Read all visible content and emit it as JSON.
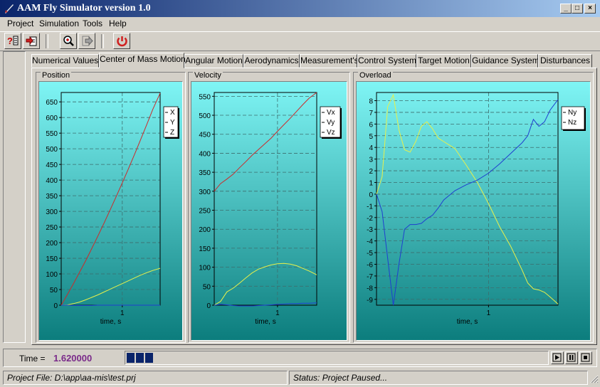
{
  "window": {
    "title": "AAM Fly Simulator version 1.0",
    "minimize": "_",
    "maximize": "□",
    "close": "×"
  },
  "menu": [
    {
      "label": "Project"
    },
    {
      "label": "Simulation"
    },
    {
      "label": "Tools"
    },
    {
      "label": "Help"
    }
  ],
  "toolbar": {
    "buttons": [
      {
        "icon": "help-list-icon"
      },
      {
        "icon": "open-project-icon"
      },
      {
        "icon": "zoom-icon"
      },
      {
        "icon": "export-icon"
      },
      {
        "icon": "stop-sim-icon"
      }
    ]
  },
  "tabs": [
    {
      "label": "Numerical Values"
    },
    {
      "label": "Center of Mass Motion",
      "active": true
    },
    {
      "label": "Angular Motion"
    },
    {
      "label": "Aerodynamics"
    },
    {
      "label": "Measurement's"
    },
    {
      "label": "Control System"
    },
    {
      "label": "Target Motion"
    },
    {
      "label": "Guidance System"
    },
    {
      "label": "Disturbances"
    }
  ],
  "chart_data": [
    {
      "type": "line",
      "title": "Position",
      "xlabel": "time, s",
      "ylabel": "",
      "xlim": [
        0,
        1.62
      ],
      "ylim": [
        0,
        680
      ],
      "xticks": [
        1
      ],
      "yticks": [
        0,
        50,
        100,
        150,
        200,
        250,
        300,
        350,
        400,
        450,
        500,
        550,
        600,
        650
      ],
      "grid": true,
      "legend_position": "top-right",
      "x": [
        0,
        0.1,
        0.2,
        0.3,
        0.4,
        0.5,
        0.6,
        0.7,
        0.8,
        0.9,
        1.0,
        1.1,
        1.2,
        1.3,
        1.4,
        1.5,
        1.62
      ],
      "series": [
        {
          "name": "X",
          "color": "#cc2a2a",
          "values": [
            0,
            34,
            69,
            105,
            142,
            181,
            221,
            262,
            304,
            347,
            391,
            436,
            482,
            529,
            577,
            626,
            678
          ]
        },
        {
          "name": "Y",
          "color": "#e8f04a",
          "values": [
            0,
            1,
            5,
            10,
            17,
            25,
            33,
            42,
            51,
            60,
            69,
            78,
            87,
            96,
            104,
            111,
            118
          ]
        },
        {
          "name": "Z",
          "color": "#1f3fd0",
          "values": [
            0,
            0,
            -1,
            -1,
            -1,
            -1,
            0,
            0,
            0,
            0,
            0,
            0,
            0,
            0,
            0,
            0,
            0
          ]
        }
      ]
    },
    {
      "type": "line",
      "title": "Velocity",
      "xlabel": "time, s",
      "ylabel": "",
      "xlim": [
        0,
        1.62
      ],
      "ylim": [
        0,
        560
      ],
      "xticks": [
        1
      ],
      "yticks": [
        0,
        50,
        100,
        150,
        200,
        250,
        300,
        350,
        400,
        450,
        500,
        550
      ],
      "grid": true,
      "legend_position": "top-right",
      "x": [
        0,
        0.1,
        0.2,
        0.3,
        0.4,
        0.5,
        0.6,
        0.7,
        0.8,
        0.9,
        1.0,
        1.1,
        1.2,
        1.3,
        1.4,
        1.5,
        1.62
      ],
      "series": [
        {
          "name": "Vx",
          "color": "#cc2a2a",
          "values": [
            300,
            320,
            332,
            345,
            362,
            378,
            395,
            410,
            425,
            440,
            458,
            475,
            492,
            510,
            528,
            545,
            560
          ]
        },
        {
          "name": "Vy",
          "color": "#e8f04a",
          "values": [
            0,
            10,
            35,
            45,
            58,
            72,
            85,
            95,
            101,
            106,
            109,
            110,
            108,
            104,
            97,
            90,
            80
          ]
        },
        {
          "name": "Vz",
          "color": "#1f3fd0",
          "values": [
            0,
            2,
            1,
            -1,
            -2,
            -2,
            -2,
            -1,
            0,
            1,
            2,
            3,
            4,
            4,
            5,
            5,
            6
          ]
        }
      ]
    },
    {
      "type": "line",
      "title": "Overload",
      "xlabel": "time, s",
      "ylabel": "",
      "xlim": [
        0,
        1.62
      ],
      "ylim": [
        -9.5,
        8.7
      ],
      "xticks": [
        1
      ],
      "yticks": [
        -9,
        -8,
        -7,
        -6,
        -5,
        -4,
        -3,
        -2,
        -1,
        0,
        1,
        2,
        3,
        4,
        5,
        6,
        7,
        8
      ],
      "grid": true,
      "legend_position": "top-right",
      "x": [
        0,
        0.05,
        0.1,
        0.15,
        0.2,
        0.25,
        0.3,
        0.35,
        0.4,
        0.45,
        0.5,
        0.55,
        0.6,
        0.7,
        0.8,
        0.9,
        1.0,
        1.1,
        1.2,
        1.3,
        1.35,
        1.4,
        1.45,
        1.5,
        1.55,
        1.62
      ],
      "series": [
        {
          "name": "Ny",
          "color": "#e8f04a",
          "values": [
            0,
            1.5,
            7.5,
            8.5,
            5.5,
            3.8,
            3.6,
            4.5,
            5.8,
            6.2,
            5.6,
            4.8,
            4.5,
            3.9,
            2.5,
            1.0,
            -0.8,
            -2.8,
            -4.5,
            -6.5,
            -7.6,
            -8.1,
            -8.2,
            -8.4,
            -8.8,
            -9.4
          ]
        },
        {
          "name": "Nz",
          "color": "#1f3fd0",
          "values": [
            0,
            -1.5,
            -5.5,
            -9.5,
            -6.0,
            -3.0,
            -2.6,
            -2.6,
            -2.5,
            -2.1,
            -1.8,
            -1.2,
            -0.5,
            0.3,
            0.8,
            1.2,
            1.8,
            2.6,
            3.5,
            4.4,
            5.0,
            6.4,
            5.8,
            6.2,
            7.2,
            8.1
          ]
        }
      ]
    }
  ],
  "status": {
    "time_label": "Time =",
    "time_value": "1.620000",
    "progress_blocks": 3,
    "project_file": "Project File: D:\\app\\aa-mis\\test.prj",
    "status_text": "Status: Project Paused..."
  },
  "colors": {
    "face": "#d4d0c8",
    "title_start": "#0a246a",
    "title_end": "#a6caf0",
    "plot_top": "#7ff5f5",
    "plot_bottom": "#0c7d7d",
    "time_value": "#7a2a8a",
    "progress": "#0a246a"
  }
}
